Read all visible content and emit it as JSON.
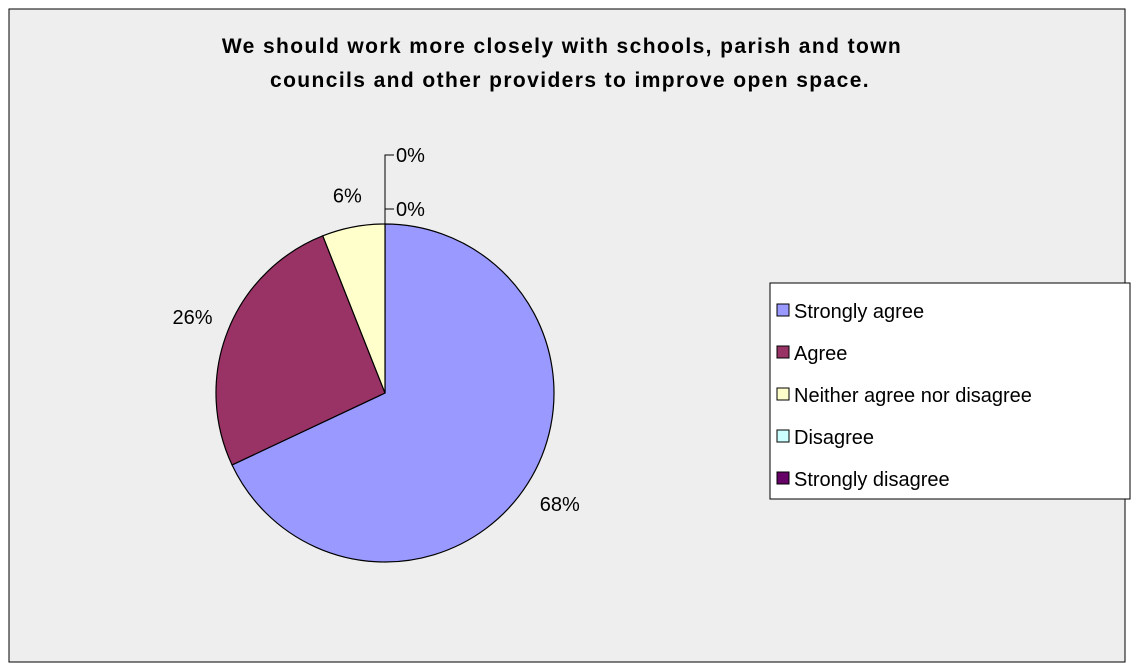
{
  "chart_data": {
    "type": "pie",
    "title_lines": [
      "We should work more closely with schools, parish and town",
      "councils and other providers to improve open space."
    ],
    "categories": [
      "Strongly agree",
      "Agree",
      "Neither agree nor disagree",
      "Disagree",
      "Strongly disagree"
    ],
    "values": [
      68,
      26,
      6,
      0,
      0
    ],
    "data_labels": [
      "68%",
      "26%",
      "6%",
      "0%",
      "0%"
    ],
    "colors": [
      "#9999ff",
      "#993366",
      "#ffffcc",
      "#ccffff",
      "#660066"
    ],
    "legend_position": "right",
    "start_angle": "12 o'clock, clockwise"
  }
}
